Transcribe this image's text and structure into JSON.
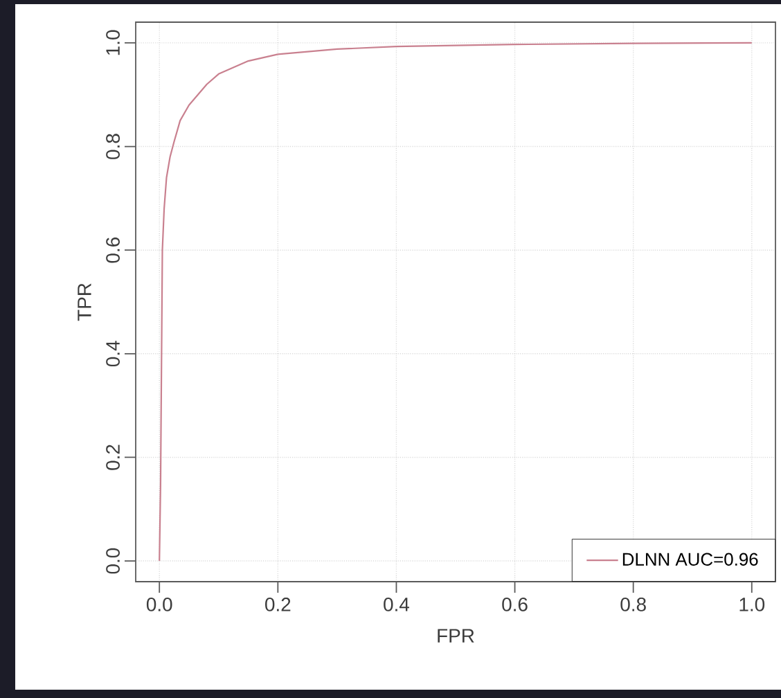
{
  "chart_data": {
    "type": "line",
    "xlabel": "FPR",
    "ylabel": "TPR",
    "x": [
      0,
      0.002,
      0.003,
      0.004,
      0.005,
      0.008,
      0.012,
      0.018,
      0.025,
      0.035,
      0.05,
      0.065,
      0.08,
      0.1,
      0.12,
      0.15,
      0.2,
      0.3,
      0.4,
      0.6,
      0.8,
      1.0
    ],
    "series": [
      {
        "name": "DLNN AUC=0.96",
        "color": "#c9808f",
        "values": [
          0,
          0.15,
          0.3,
          0.45,
          0.6,
          0.68,
          0.74,
          0.78,
          0.81,
          0.85,
          0.88,
          0.9,
          0.92,
          0.94,
          0.95,
          0.965,
          0.978,
          0.988,
          0.993,
          0.997,
          0.999,
          1.0
        ]
      }
    ],
    "xlim": [
      -0.04,
      1.04
    ],
    "ylim": [
      -0.04,
      1.04
    ],
    "xticks": [
      {
        "value": 0,
        "label": "0.0"
      },
      0.2,
      0.4,
      0.6,
      0.8,
      {
        "value": 1.0,
        "label": "1.0"
      }
    ],
    "yticks": [
      {
        "value": 0,
        "label": "0.0"
      },
      0.2,
      0.4,
      0.6,
      0.8,
      {
        "value": 1.0,
        "label": "1.0"
      }
    ],
    "grid": true,
    "legend": "bottom right",
    "line_style": "solid",
    "marker": "none"
  }
}
